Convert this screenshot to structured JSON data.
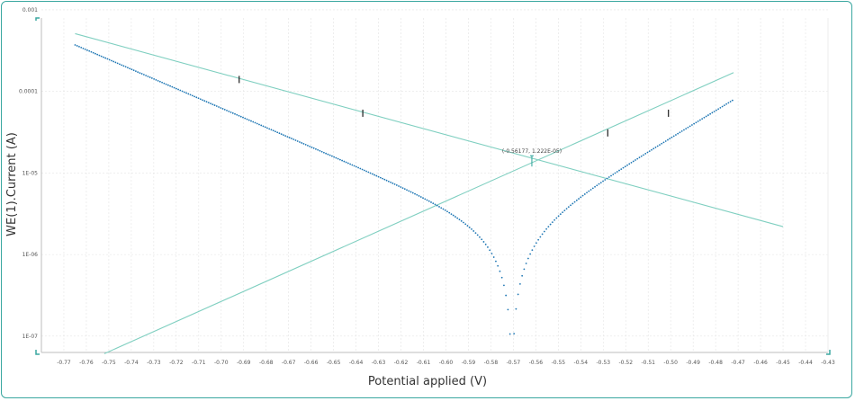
{
  "chart_data": {
    "type": "scatter",
    "xlabel": "Potential applied (V)",
    "ylabel": "WE(1).Current (A)",
    "xlim": [
      -0.78,
      -0.43
    ],
    "ylim_log10": [
      -7.2,
      -3.1
    ],
    "y_scale": "log",
    "grid": true,
    "x_ticks": [
      "-0.77",
      "-0.76",
      "-0.75",
      "-0.74",
      "-0.73",
      "-0.72",
      "-0.71",
      "-0.70",
      "-0.69",
      "-0.68",
      "-0.67",
      "-0.66",
      "-0.65",
      "-0.64",
      "-0.63",
      "-0.62",
      "-0.61",
      "-0.60",
      "-0.59",
      "-0.58",
      "-0.57",
      "-0.56",
      "-0.55",
      "-0.54",
      "-0.53",
      "-0.52",
      "-0.51",
      "-0.50",
      "-0.49",
      "-0.48",
      "-0.47",
      "-0.46",
      "-0.45",
      "-0.44",
      "-0.43"
    ],
    "y_ticks": [
      {
        "value": 0.001,
        "label": "0.001"
      },
      {
        "value": 0.0001,
        "label": "0.0001"
      },
      {
        "value": 1e-05,
        "label": "1E-05"
      },
      {
        "value": 1e-06,
        "label": "1E-06"
      },
      {
        "value": 1e-07,
        "label": "1E-07"
      }
    ],
    "corr_potential": -0.5706,
    "corr_current": 1.8e-06,
    "cathodic_beta": -0.084,
    "anodic_beta": 0.06,
    "x_start": -0.765,
    "x_end": -0.472,
    "series": [
      {
        "style": "tafel-fit",
        "color": "#7fcfc0",
        "points": [
          {
            "x": -0.765,
            "y": 0.00051
          },
          {
            "x": -0.45,
            "y": 2.2e-06
          }
        ]
      },
      {
        "style": "tafel-fit",
        "color": "#7fcfc0",
        "points": [
          {
            "x": -0.752,
            "y": 6.1e-08
          },
          {
            "x": -0.472,
            "y": 0.00017
          }
        ]
      }
    ],
    "markers": [
      {
        "x": -0.692,
        "y": 0.00014
      },
      {
        "x": -0.637,
        "y": 5.4e-05
      },
      {
        "x": -0.528,
        "y": 3.1e-05
      },
      {
        "x": -0.501,
        "y": 5.4e-05
      }
    ],
    "intersection": {
      "x": -0.56177,
      "y": 1.2e-05,
      "label": "(-0.56177, 1.222E-05)"
    },
    "colors": {
      "data": "#1f77b4",
      "fit": "#7fcfc0",
      "frame": "#3aa7a0",
      "marker": "#1a1a1a",
      "grid": "#e4e4e4"
    }
  }
}
